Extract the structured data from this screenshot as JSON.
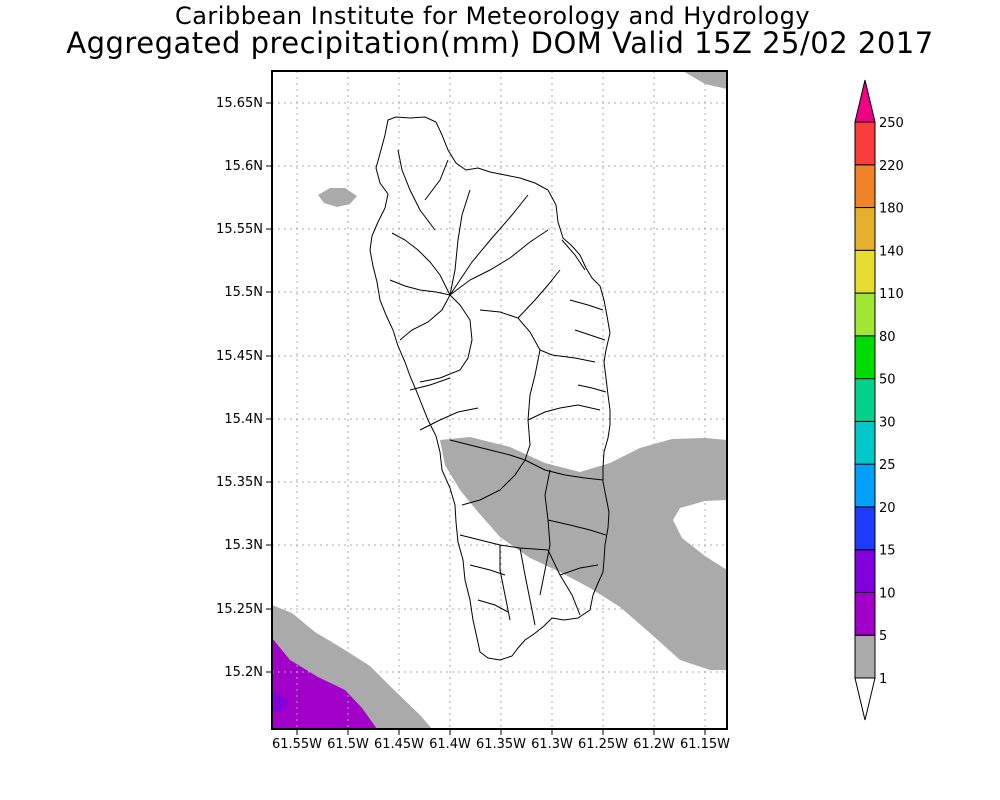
{
  "title_line1": "Caribbean Institute for Meteorology and Hydrology",
  "title_line2": "Aggregated precipitation(mm) DOM Valid 15Z 25/02 2017",
  "lat_labels": [
    "15.65N",
    "15.6N",
    "15.55N",
    "15.5N",
    "15.45N",
    "15.4N",
    "15.35N",
    "15.3N",
    "15.25N",
    "15.2N"
  ],
  "lon_labels": [
    "61.55W",
    "61.5W",
    "61.45W",
    "61.4W",
    "61.35W",
    "61.3W",
    "61.25W",
    "61.2W",
    "61.15W"
  ],
  "legend": {
    "colors": [
      "#aaaaaa",
      "#a000c8",
      "#8200dc",
      "#1e3cff",
      "#00a0ff",
      "#00c8c8",
      "#00d28c",
      "#00dc00",
      "#a0e632",
      "#e6dc32",
      "#e6af2d",
      "#f08228",
      "#fa3c3c",
      "#f00082"
    ],
    "labels": [
      "1",
      "5",
      "10",
      "15",
      "20",
      "25",
      "30",
      "50",
      "80",
      "110",
      "140",
      "180",
      "220",
      "250"
    ]
  }
}
